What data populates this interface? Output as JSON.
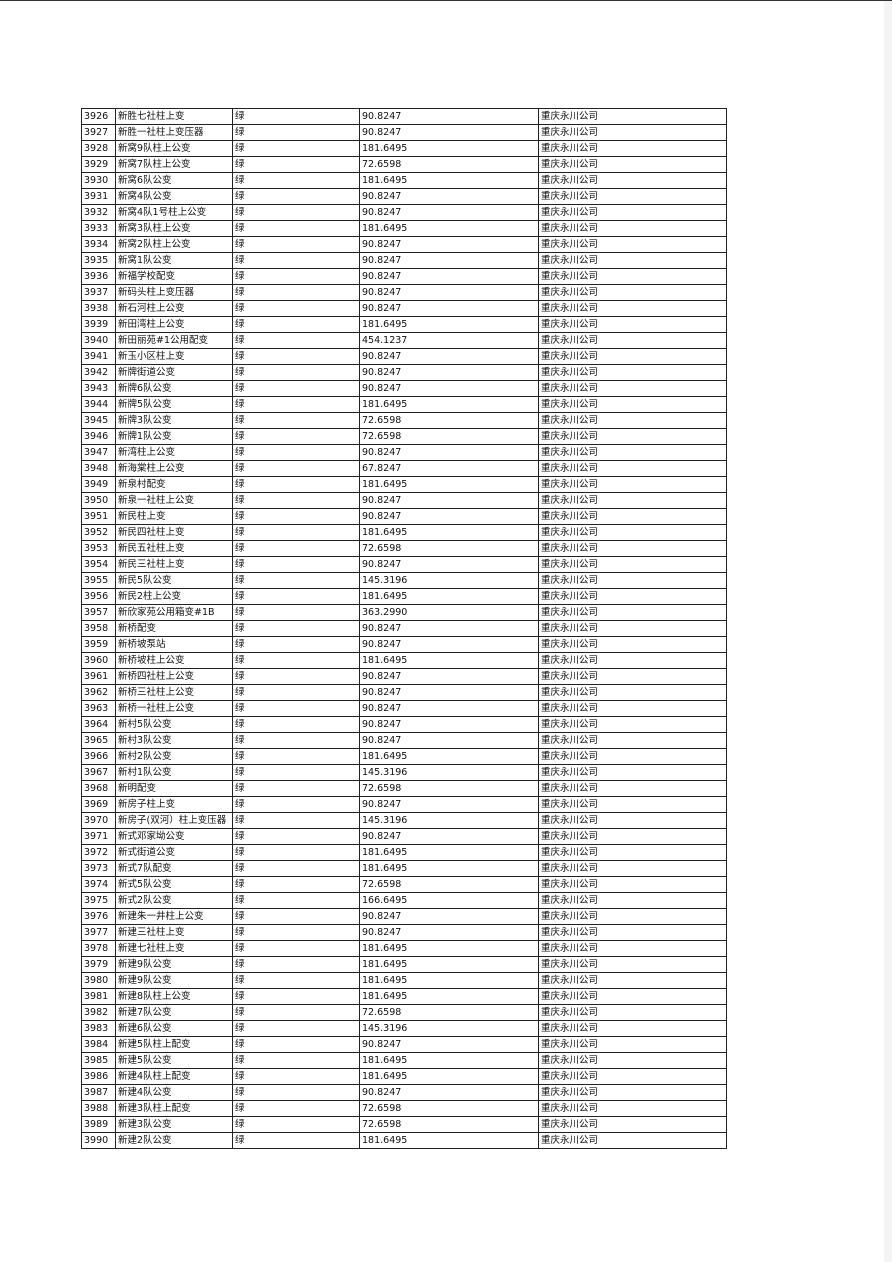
{
  "table": {
    "rows": [
      [
        "3926",
        "新胜七社柱上变",
        "绿",
        "90.8247",
        "重庆永川公司"
      ],
      [
        "3927",
        "新胜一社柱上变压器",
        "绿",
        "90.8247",
        "重庆永川公司"
      ],
      [
        "3928",
        "新窝9队柱上公变",
        "绿",
        "181.6495",
        "重庆永川公司"
      ],
      [
        "3929",
        "新窝7队柱上公变",
        "绿",
        "72.6598",
        "重庆永川公司"
      ],
      [
        "3930",
        "新窝6队公变",
        "绿",
        "181.6495",
        "重庆永川公司"
      ],
      [
        "3931",
        "新窝4队公变",
        "绿",
        "90.8247",
        "重庆永川公司"
      ],
      [
        "3932",
        "新窝4队1号柱上公变",
        "绿",
        "90.8247",
        "重庆永川公司"
      ],
      [
        "3933",
        "新窝3队柱上公变",
        "绿",
        "181.6495",
        "重庆永川公司"
      ],
      [
        "3934",
        "新窝2队柱上公变",
        "绿",
        "90.8247",
        "重庆永川公司"
      ],
      [
        "3935",
        "新窝1队公变",
        "绿",
        "90.8247",
        "重庆永川公司"
      ],
      [
        "3936",
        "新福学校配变",
        "绿",
        "90.8247",
        "重庆永川公司"
      ],
      [
        "3937",
        "新码头柱上变压器",
        "绿",
        "90.8247",
        "重庆永川公司"
      ],
      [
        "3938",
        "新石河柱上公变",
        "绿",
        "90.8247",
        "重庆永川公司"
      ],
      [
        "3939",
        "新田湾柱上公变",
        "绿",
        "181.6495",
        "重庆永川公司"
      ],
      [
        "3940",
        "新田丽苑#1公用配变",
        "绿",
        "454.1237",
        "重庆永川公司"
      ],
      [
        "3941",
        "新玉小区柱上变",
        "绿",
        "90.8247",
        "重庆永川公司"
      ],
      [
        "3942",
        "新牌街道公变",
        "绿",
        "90.8247",
        "重庆永川公司"
      ],
      [
        "3943",
        "新牌6队公变",
        "绿",
        "90.8247",
        "重庆永川公司"
      ],
      [
        "3944",
        "新牌5队公变",
        "绿",
        "181.6495",
        "重庆永川公司"
      ],
      [
        "3945",
        "新牌3队公变",
        "绿",
        "72.6598",
        "重庆永川公司"
      ],
      [
        "3946",
        "新牌1队公变",
        "绿",
        "72.6598",
        "重庆永川公司"
      ],
      [
        "3947",
        "新湾柱上公变",
        "绿",
        "90.8247",
        "重庆永川公司"
      ],
      [
        "3948",
        "新海棠柱上公变",
        "绿",
        "67.8247",
        "重庆永川公司"
      ],
      [
        "3949",
        "新泉村配变",
        "绿",
        "181.6495",
        "重庆永川公司"
      ],
      [
        "3950",
        "新泉一社柱上公变",
        "绿",
        "90.8247",
        "重庆永川公司"
      ],
      [
        "3951",
        "新民柱上变",
        "绿",
        "90.8247",
        "重庆永川公司"
      ],
      [
        "3952",
        "新民四社柱上变",
        "绿",
        "181.6495",
        "重庆永川公司"
      ],
      [
        "3953",
        "新民五社柱上变",
        "绿",
        "72.6598",
        "重庆永川公司"
      ],
      [
        "3954",
        "新民三社柱上变",
        "绿",
        "90.8247",
        "重庆永川公司"
      ],
      [
        "3955",
        "新民5队公变",
        "绿",
        "145.3196",
        "重庆永川公司"
      ],
      [
        "3956",
        "新民2柱上公变",
        "绿",
        "181.6495",
        "重庆永川公司"
      ],
      [
        "3957",
        "新欣家苑公用箱变#1B",
        "绿",
        "363.2990",
        "重庆永川公司"
      ],
      [
        "3958",
        "新桥配变",
        "绿",
        "90.8247",
        "重庆永川公司"
      ],
      [
        "3959",
        "新桥坡泵站",
        "绿",
        "90.8247",
        "重庆永川公司"
      ],
      [
        "3960",
        "新桥坡柱上公变",
        "绿",
        "181.6495",
        "重庆永川公司"
      ],
      [
        "3961",
        "新桥四社柱上公变",
        "绿",
        "90.8247",
        "重庆永川公司"
      ],
      [
        "3962",
        "新桥三社柱上公变",
        "绿",
        "90.8247",
        "重庆永川公司"
      ],
      [
        "3963",
        "新桥一社柱上公变",
        "绿",
        "90.8247",
        "重庆永川公司"
      ],
      [
        "3964",
        "新村5队公变",
        "绿",
        "90.8247",
        "重庆永川公司"
      ],
      [
        "3965",
        "新村3队公变",
        "绿",
        "90.8247",
        "重庆永川公司"
      ],
      [
        "3966",
        "新村2队公变",
        "绿",
        "181.6495",
        "重庆永川公司"
      ],
      [
        "3967",
        "新村1队公变",
        "绿",
        "145.3196",
        "重庆永川公司"
      ],
      [
        "3968",
        "新明配变",
        "绿",
        "72.6598",
        "重庆永川公司"
      ],
      [
        "3969",
        "新房子柱上变",
        "绿",
        "90.8247",
        "重庆永川公司"
      ],
      [
        "3970",
        "新房子(双河）柱上变压器",
        "绿",
        "145.3196",
        "重庆永川公司"
      ],
      [
        "3971",
        "新式邓家坳公变",
        "绿",
        "90.8247",
        "重庆永川公司"
      ],
      [
        "3972",
        "新式街道公变",
        "绿",
        "181.6495",
        "重庆永川公司"
      ],
      [
        "3973",
        "新式7队配变",
        "绿",
        "181.6495",
        "重庆永川公司"
      ],
      [
        "3974",
        "新式5队公变",
        "绿",
        "72.6598",
        "重庆永川公司"
      ],
      [
        "3975",
        "新式2队公变",
        "绿",
        "166.6495",
        "重庆永川公司"
      ],
      [
        "3976",
        "新建朱一井柱上公变",
        "绿",
        "90.8247",
        "重庆永川公司"
      ],
      [
        "3977",
        "新建三社柱上变",
        "绿",
        "90.8247",
        "重庆永川公司"
      ],
      [
        "3978",
        "新建七社柱上变",
        "绿",
        "181.6495",
        "重庆永川公司"
      ],
      [
        "3979",
        "新建9队公变",
        "绿",
        "181.6495",
        "重庆永川公司"
      ],
      [
        "3980",
        "新建9队公变",
        "绿",
        "181.6495",
        "重庆永川公司"
      ],
      [
        "3981",
        "新建8队柱上公变",
        "绿",
        "181.6495",
        "重庆永川公司"
      ],
      [
        "3982",
        "新建7队公变",
        "绿",
        "72.6598",
        "重庆永川公司"
      ],
      [
        "3983",
        "新建6队公变",
        "绿",
        "145.3196",
        "重庆永川公司"
      ],
      [
        "3984",
        "新建5队柱上配变",
        "绿",
        "90.8247",
        "重庆永川公司"
      ],
      [
        "3985",
        "新建5队公变",
        "绿",
        "181.6495",
        "重庆永川公司"
      ],
      [
        "3986",
        "新建4队柱上配变",
        "绿",
        "181.6495",
        "重庆永川公司"
      ],
      [
        "3987",
        "新建4队公变",
        "绿",
        "90.8247",
        "重庆永川公司"
      ],
      [
        "3988",
        "新建3队柱上配变",
        "绿",
        "72.6598",
        "重庆永川公司"
      ],
      [
        "3989",
        "新建3队公变",
        "绿",
        "72.6598",
        "重庆永川公司"
      ],
      [
        "3990",
        "新建2队公变",
        "绿",
        "181.6495",
        "重庆永川公司"
      ]
    ]
  }
}
